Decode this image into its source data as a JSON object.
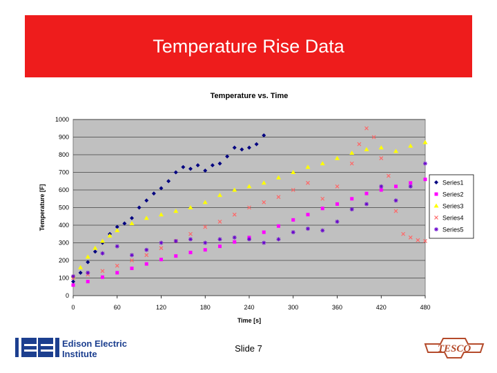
{
  "slide": {
    "title": "Temperature Rise Data",
    "footer": "Slide 7",
    "logo_left_line1": "Edison Electric",
    "logo_left_line2": "Institute",
    "logo_left_mark": "EEI",
    "logo_right_text": "TESCO",
    "banner_color": "#ee1c1c"
  },
  "chart_data": {
    "type": "scatter",
    "title": "Temperature vs. Time",
    "xlabel": "Time [s]",
    "ylabel": "Temperature [F]",
    "xlim": [
      0,
      480
    ],
    "ylim": [
      0,
      1000
    ],
    "xticks": [
      0,
      60,
      120,
      180,
      240,
      300,
      360,
      420,
      480
    ],
    "yticks": [
      0,
      100,
      200,
      300,
      400,
      500,
      600,
      700,
      800,
      900,
      1000
    ],
    "grid": true,
    "plot_background": "#c0c0c0",
    "legend_position": "right",
    "series": [
      {
        "name": "Series1",
        "color": "#000080",
        "marker": "diamond",
        "x": [
          0,
          10,
          20,
          30,
          40,
          50,
          60,
          70,
          80,
          90,
          100,
          110,
          120,
          130,
          140,
          150,
          160,
          170,
          180,
          190,
          200,
          210,
          220,
          230,
          240,
          250,
          260
        ],
        "y": [
          80,
          130,
          190,
          250,
          300,
          350,
          390,
          410,
          440,
          500,
          540,
          580,
          610,
          650,
          700,
          730,
          720,
          740,
          710,
          740,
          750,
          790,
          840,
          830,
          840,
          860,
          910
        ]
      },
      {
        "name": "Series2",
        "color": "#ff00ff",
        "marker": "square",
        "x": [
          0,
          20,
          40,
          60,
          80,
          100,
          120,
          140,
          160,
          180,
          200,
          220,
          240,
          260,
          280,
          300,
          320,
          340,
          360,
          380,
          400,
          420,
          440,
          460,
          480
        ],
        "y": [
          60,
          80,
          105,
          130,
          155,
          180,
          205,
          225,
          245,
          260,
          280,
          305,
          330,
          360,
          395,
          430,
          460,
          495,
          520,
          550,
          580,
          600,
          620,
          640,
          660
        ]
      },
      {
        "name": "Series3",
        "color": "#ffff00",
        "marker": "triangle",
        "x": [
          0,
          10,
          20,
          30,
          40,
          50,
          60,
          80,
          100,
          120,
          140,
          160,
          180,
          200,
          220,
          240,
          260,
          280,
          300,
          320,
          340,
          360,
          380,
          400,
          420,
          440,
          460,
          480
        ],
        "y": [
          110,
          160,
          220,
          270,
          310,
          340,
          370,
          410,
          440,
          460,
          480,
          500,
          530,
          570,
          600,
          620,
          640,
          670,
          700,
          730,
          750,
          780,
          810,
          830,
          840,
          820,
          850,
          870
        ]
      },
      {
        "name": "Series4",
        "color": "#ff6666",
        "marker": "x",
        "x": [
          0,
          20,
          40,
          60,
          80,
          100,
          120,
          140,
          160,
          180,
          200,
          220,
          240,
          260,
          280,
          300,
          320,
          340,
          360,
          380,
          390,
          400,
          410,
          420,
          430,
          440,
          450,
          460,
          470,
          480
        ],
        "y": [
          100,
          120,
          140,
          170,
          200,
          230,
          270,
          310,
          350,
          390,
          420,
          460,
          500,
          530,
          560,
          600,
          640,
          550,
          620,
          750,
          860,
          950,
          900,
          780,
          680,
          480,
          350,
          330,
          315,
          310
        ]
      },
      {
        "name": "Series5",
        "color": "#6600cc",
        "marker": "star",
        "x": [
          0,
          20,
          40,
          60,
          80,
          100,
          120,
          140,
          160,
          180,
          200,
          220,
          240,
          260,
          280,
          300,
          320,
          340,
          360,
          380,
          400,
          420,
          440,
          460,
          480
        ],
        "y": [
          110,
          130,
          240,
          280,
          230,
          260,
          300,
          310,
          320,
          300,
          320,
          330,
          320,
          300,
          320,
          360,
          380,
          370,
          420,
          490,
          520,
          620,
          540,
          620,
          750
        ]
      }
    ]
  }
}
